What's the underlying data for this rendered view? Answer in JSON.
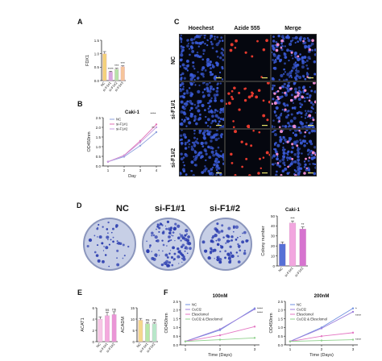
{
  "panel_labels": {
    "a": "A",
    "b": "B",
    "c": "C",
    "d": "D",
    "e": "E",
    "f": "F"
  },
  "panel_c": {
    "columns": [
      "Hoechest",
      "Azide 555",
      "Merge"
    ],
    "rows": [
      "NC",
      "si-F1#1",
      "si-F1#2"
    ],
    "colors": {
      "hoechst": "#3a5bd9",
      "azide": "#e53a2e",
      "merge_pink": "#e98bd0"
    }
  },
  "panel_d": {
    "dish_labels": [
      "NC",
      "si-F1#1",
      "si-F1#2"
    ],
    "dish_color": "#2d3fb0"
  },
  "chart_data": [
    {
      "id": "A",
      "type": "bar",
      "ylabel": "FDX1",
      "categories": [
        "NC",
        "si-F1#1",
        "si-F1#2",
        "si-F1#3"
      ],
      "values": [
        1.0,
        0.32,
        0.43,
        0.52
      ],
      "errors": [
        0.08,
        0.03,
        0.03,
        0.03
      ],
      "ylim": [
        0,
        1.5
      ],
      "yticks": [
        "0.0",
        "0.5",
        "1.0",
        "1.5"
      ],
      "annotations": [
        "",
        "****",
        "***",
        "***"
      ],
      "colors": [
        "#f4d27a",
        "#d8a6e0",
        "#b7e2a9",
        "#f6c59a"
      ]
    },
    {
      "id": "B",
      "type": "line",
      "title": "Caki-1",
      "xlabel": "Day",
      "ylabel": "OD450nm",
      "x": [
        1,
        2,
        3,
        4
      ],
      "ylim": [
        0,
        2.5
      ],
      "yticks": [
        "0.0",
        "0.5",
        "1.0",
        "1.5",
        "2.0",
        "2.5"
      ],
      "xticks": [
        "1",
        "2",
        "3",
        "4"
      ],
      "series": [
        {
          "name": "NC",
          "values": [
            0.22,
            0.48,
            1.05,
            1.75
          ],
          "color": "#8da0dd"
        },
        {
          "name": "si-F1#1",
          "values": [
            0.22,
            0.55,
            1.3,
            2.15
          ],
          "color": "#e16fb4"
        },
        {
          "name": "si-F1#2",
          "values": [
            0.22,
            0.53,
            1.22,
            2.0
          ],
          "color": "#c79be0"
        }
      ],
      "annotations": [
        {
          "x": 3,
          "label": "**"
        },
        {
          "x": 4,
          "label": "****"
        }
      ]
    },
    {
      "id": "D",
      "type": "bar",
      "title": "Caki-1",
      "ylabel": "Colony number",
      "categories": [
        "NC",
        "si-F1#1",
        "si-F1#2"
      ],
      "values": [
        22,
        43,
        37
      ],
      "errors": [
        2,
        2,
        2
      ],
      "ylim": [
        0,
        50
      ],
      "yticks": [
        "0",
        "10",
        "20",
        "30",
        "40",
        "50"
      ],
      "annotations": [
        "",
        "***",
        "**"
      ],
      "colors": [
        "#5670d6",
        "#f2a6df",
        "#d673cf"
      ]
    },
    {
      "id": "E1",
      "type": "bar",
      "ylabel": "ACAT1",
      "categories": [
        "NC",
        "si-F1#1",
        "si-F1#2"
      ],
      "values": [
        4.0,
        4.6,
        4.8
      ],
      "errors": [
        0.4,
        0.6,
        0.5
      ],
      "ylim": [
        0,
        6
      ],
      "yticks": [
        "0",
        "2",
        "4",
        "6"
      ],
      "annotations": [
        "",
        "ns",
        "ns"
      ],
      "colors": [
        "#f7c6e6",
        "#f4a9de",
        "#ea95d6"
      ]
    },
    {
      "id": "E2",
      "type": "bar",
      "ylabel": "ACADM",
      "categories": [
        "NC",
        "si-F1#1",
        "si-F1#2"
      ],
      "values": [
        9.5,
        8.0,
        8.0
      ],
      "errors": [
        0.8,
        0.5,
        0.5
      ],
      "ylim": [
        0,
        15
      ],
      "yticks": [
        "0",
        "5",
        "10",
        "15"
      ],
      "annotations": [
        "",
        "ns",
        "ns"
      ],
      "colors": [
        "#f5d88c",
        "#b6e7a7",
        "#b8e7c9"
      ]
    },
    {
      "id": "F1",
      "type": "line",
      "title": "100nM",
      "xlabel": "Time (Days)",
      "ylabel": "OD450nm",
      "x": [
        1,
        2,
        3
      ],
      "xticks": [
        "1",
        "2",
        "3"
      ],
      "ylim": [
        0,
        2.5
      ],
      "yticks": [
        "0.0",
        "0.5",
        "1.0",
        "1.5",
        "2.0",
        "2.5"
      ],
      "series": [
        {
          "name": "NC",
          "values": [
            0.2,
            0.85,
            2.1
          ],
          "color": "#6f8fe0"
        },
        {
          "name": "CuCl2",
          "values": [
            0.2,
            0.9,
            2.05
          ],
          "color": "#9c7fdc"
        },
        {
          "name": "Elesclomol",
          "values": [
            0.2,
            0.55,
            1.05
          ],
          "color": "#e477c3"
        },
        {
          "name": "CuCl2 & Elesclomol",
          "values": [
            0.2,
            0.3,
            0.4
          ],
          "color": "#8fd18c"
        }
      ],
      "annotations": [
        {
          "x": 3,
          "label": "****"
        },
        {
          "x": 3,
          "label": "****"
        }
      ]
    },
    {
      "id": "F2",
      "type": "line",
      "title": "200nM",
      "xlabel": "Time (Days)",
      "ylabel": "OD450nm",
      "x": [
        1,
        2,
        3
      ],
      "xticks": [
        "1",
        "2",
        "3"
      ],
      "ylim": [
        0,
        2.5
      ],
      "yticks": [
        "0.0",
        "0.5",
        "1.0",
        "1.5",
        "2.0",
        "2.5"
      ],
      "series": [
        {
          "name": "NC",
          "values": [
            0.2,
            1.0,
            2.1
          ],
          "color": "#6f8fe0"
        },
        {
          "name": "CuCl2",
          "values": [
            0.2,
            0.95,
            1.9
          ],
          "color": "#9c7fdc"
        },
        {
          "name": "Elesclomol",
          "values": [
            0.2,
            0.5,
            0.7
          ],
          "color": "#e477c3"
        },
        {
          "name": "CuCl2 & Elesclomol",
          "values": [
            0.2,
            0.25,
            0.3
          ],
          "color": "#8fd18c"
        }
      ],
      "annotations": [
        {
          "x": 3,
          "label": "*"
        },
        {
          "x": 3,
          "label": "****"
        },
        {
          "x": 3,
          "label": "****"
        }
      ]
    }
  ]
}
